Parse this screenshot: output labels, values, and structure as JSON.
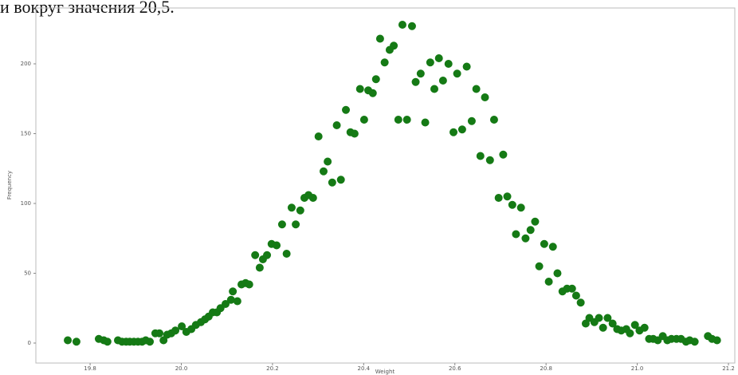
{
  "caption": "и вокруг значения 20,5.",
  "chart_data": {
    "type": "scatter",
    "xlabel": "Weight",
    "ylabel": "Frequency",
    "color": "#157a15",
    "xlim": [
      19.681,
      21.214
    ],
    "ylim": [
      -14.3,
      240
    ],
    "xticks": [
      19.8,
      {
        "value": 20,
        "label": "20.0"
      },
      20.2,
      20.4,
      20.6,
      20.8,
      {
        "value": 21,
        "label": "21.0"
      },
      21.2
    ],
    "yticks": [
      0,
      50,
      100,
      150,
      200
    ],
    "x": [
      19.751,
      19.77,
      19.819,
      19.83,
      19.838,
      19.861,
      19.87,
      19.879,
      19.887,
      19.896,
      19.905,
      19.914,
      19.922,
      19.931,
      19.943,
      19.952,
      19.961,
      19.969,
      19.978,
      19.987,
      20.001,
      20.011,
      20.022,
      20.032,
      20.043,
      20.052,
      20.06,
      20.069,
      20.078,
      20.086,
      20.097,
      20.109,
      20.113,
      20.123,
      20.132,
      20.141,
      20.149,
      20.162,
      20.172,
      20.179,
      20.188,
      20.198,
      20.209,
      20.221,
      20.231,
      20.242,
      20.251,
      20.261,
      20.27,
      20.279,
      20.289,
      20.301,
      20.312,
      20.321,
      20.331,
      20.341,
      20.35,
      20.361,
      20.371,
      20.38,
      20.392,
      20.401,
      20.41,
      20.42,
      20.427,
      20.436,
      20.446,
      20.457,
      20.466,
      20.476,
      20.485,
      20.495,
      20.506,
      20.514,
      20.525,
      20.535,
      20.546,
      20.555,
      20.565,
      20.574,
      20.586,
      20.597,
      20.605,
      20.616,
      20.626,
      20.637,
      20.647,
      20.656,
      20.666,
      20.677,
      20.686,
      20.696,
      20.706,
      20.715,
      20.726,
      20.734,
      20.745,
      20.755,
      20.766,
      20.776,
      20.785,
      20.796,
      20.806,
      20.815,
      20.825,
      20.836,
      20.846,
      20.857,
      20.866,
      20.876,
      20.887,
      20.895,
      20.906,
      20.916,
      20.925,
      20.935,
      20.946,
      20.956,
      20.965,
      20.976,
      20.984,
      20.995,
      21.005,
      21.016,
      21.026,
      21.035,
      21.045,
      21.056,
      21.066,
      21.075,
      21.086,
      21.096,
      21.107,
      21.115,
      21.126,
      21.155,
      21.164,
      21.175
    ],
    "values": [
      2,
      1,
      3,
      2,
      1,
      2,
      1,
      1,
      1,
      1,
      1,
      1,
      2,
      1,
      7,
      7,
      2,
      6,
      7,
      9,
      12,
      8,
      10,
      13,
      15,
      17,
      19,
      22,
      22,
      25,
      28,
      31,
      37,
      30,
      42,
      43,
      42,
      63,
      54,
      60,
      63,
      71,
      70,
      85,
      64,
      97,
      85,
      95,
      104,
      106,
      104,
      148,
      123,
      130,
      115,
      156,
      117,
      167,
      151,
      150,
      182,
      160,
      181,
      179,
      189,
      218,
      201,
      210,
      213,
      160,
      228,
      160,
      227,
      187,
      193,
      158,
      201,
      182,
      204,
      188,
      200,
      151,
      193,
      153,
      198,
      159,
      182,
      134,
      176,
      131,
      160,
      104,
      135,
      105,
      99,
      78,
      97,
      75,
      81,
      87,
      55,
      71,
      44,
      69,
      50,
      37,
      39,
      39,
      34,
      29,
      14,
      18,
      15,
      18,
      11,
      18,
      14,
      10,
      9,
      10,
      7,
      13,
      9,
      11,
      3,
      3,
      2,
      5,
      2,
      3,
      3,
      3,
      1,
      2,
      1,
      5,
      3,
      2
    ]
  }
}
